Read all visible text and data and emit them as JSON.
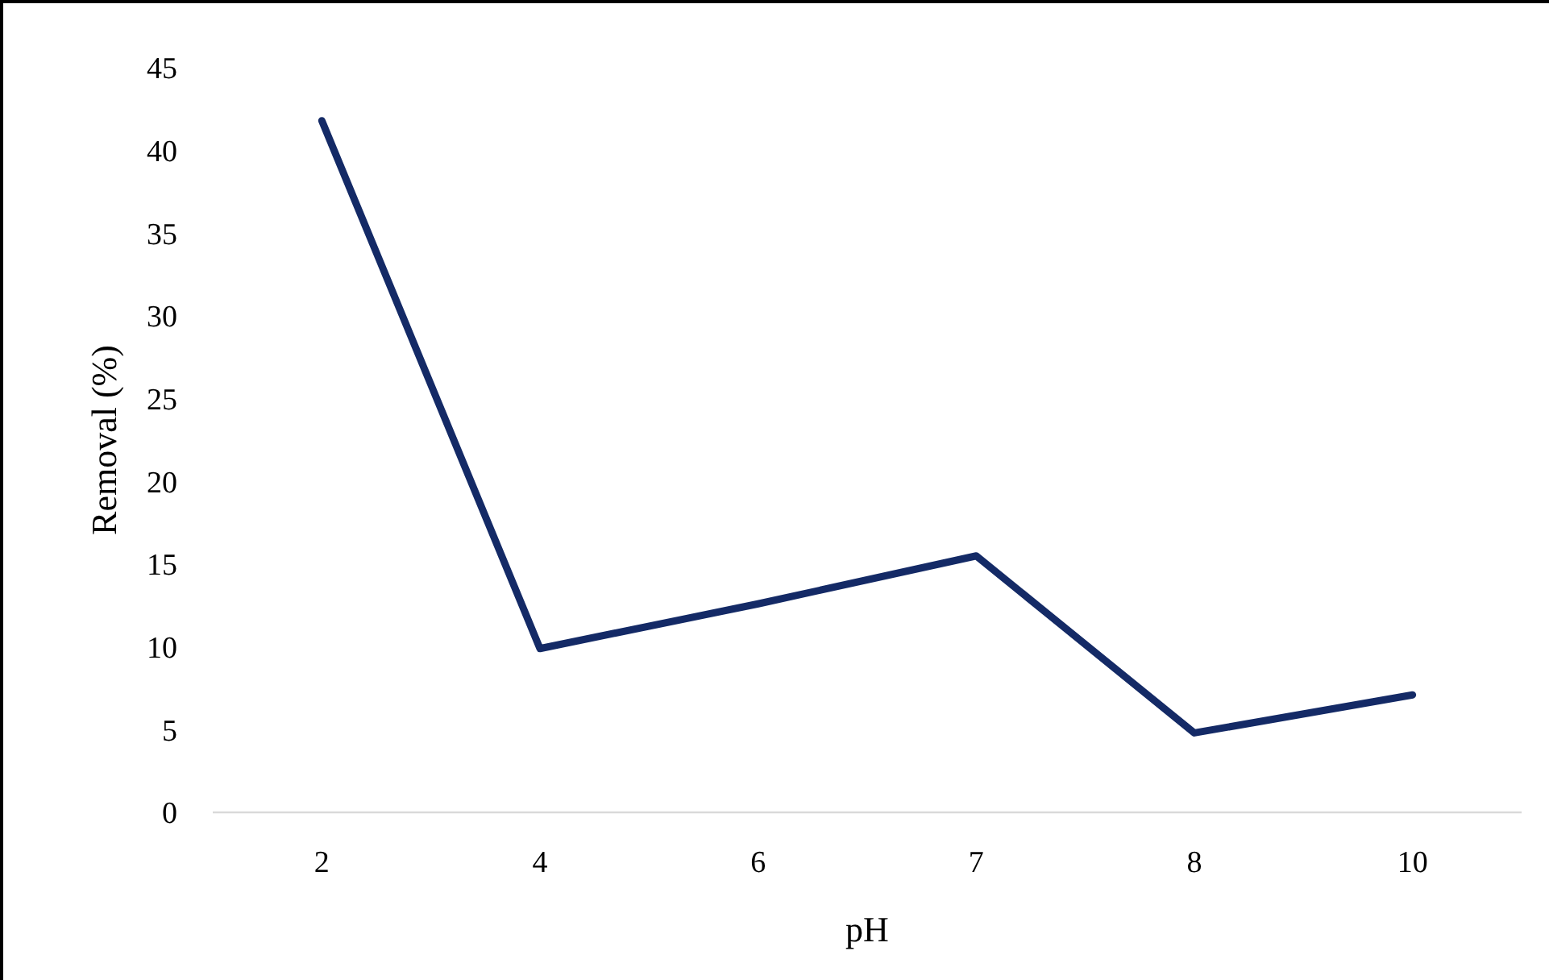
{
  "chart_data": {
    "type": "line",
    "xlabel": "pH",
    "ylabel": "Removal (%)",
    "categories": [
      "2",
      "4",
      "6",
      "7",
      "8",
      "10"
    ],
    "series": [
      {
        "color": "#142a66",
        "values": [
          41.8,
          9.9,
          12.6,
          15.5,
          4.8,
          7.1
        ]
      }
    ],
    "ylim": [
      0,
      45
    ],
    "yticks": [
      0,
      5,
      10,
      15,
      20,
      25,
      30,
      35,
      40,
      45
    ],
    "grid": false,
    "marker": "none",
    "line_style": "solid"
  }
}
